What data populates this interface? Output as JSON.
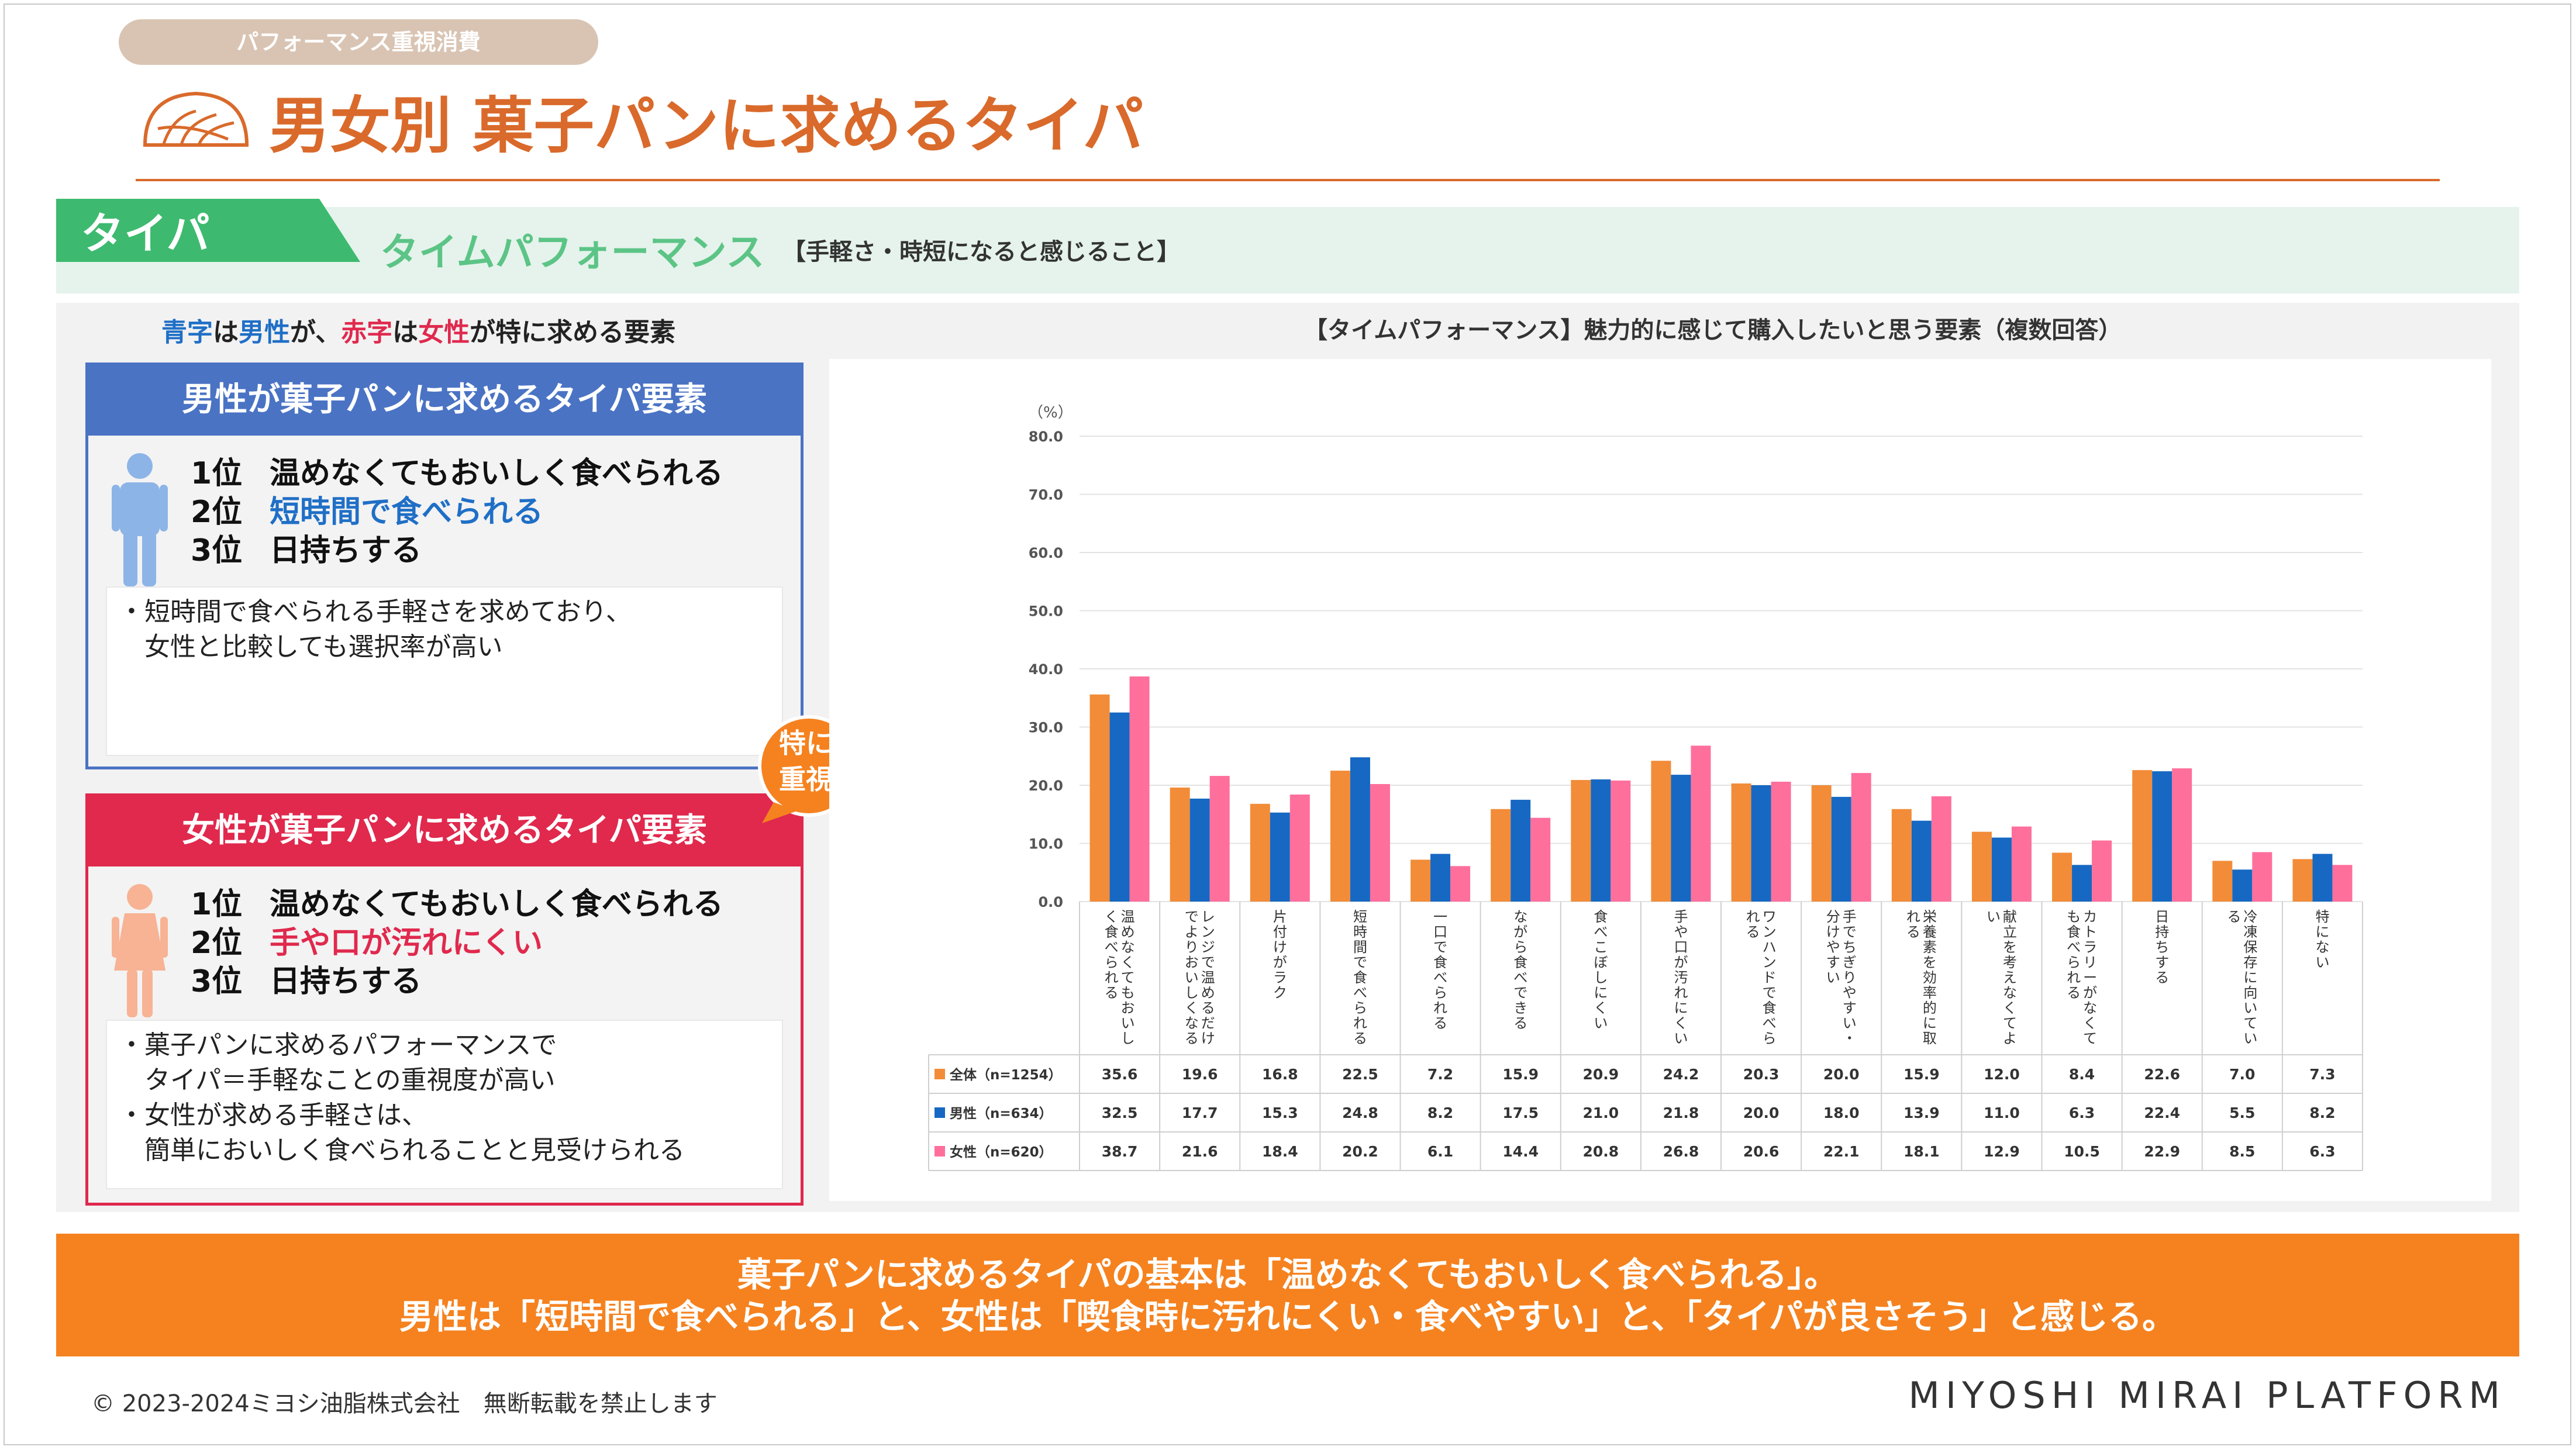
{
  "header": {
    "tag": "パフォーマンス重視消費",
    "title": "男女別 菓子パンに求めるタイパ"
  },
  "band": {
    "tag": "タイパ",
    "title": "タイムパフォーマンス",
    "subtitle": "【手軽さ・時短になると感じること】"
  },
  "legend_note": {
    "part1": "青字",
    "part2": "は",
    "part3": "男性",
    "part4": "が、",
    "part5": "赤字",
    "part6": "は",
    "part7": "女性",
    "part8": "が特に求める要素"
  },
  "male_box": {
    "title": "男性が菓子パンに求めるタイパ要素",
    "ranks": [
      {
        "pos": "1位",
        "text": "温めなくてもおいしく食べられる"
      },
      {
        "pos": "2位",
        "text": "短時間で食べられる"
      },
      {
        "pos": "3位",
        "text": "日持ちする"
      }
    ],
    "notes": [
      "・短時間で食べられる手軽さを求めており、",
      "　女性と比較しても選択率が高い"
    ]
  },
  "female_box": {
    "title": "女性が菓子パンに求めるタイパ要素",
    "ranks": [
      {
        "pos": "1位",
        "text": "温めなくてもおいしく食べられる"
      },
      {
        "pos": "2位",
        "text": "手や口が汚れにくい"
      },
      {
        "pos": "3位",
        "text": "日持ちする"
      }
    ],
    "notes": [
      "・菓子パンに求めるパフォーマンスで",
      "　タイパ＝手軽なことの重視度が高い",
      "・女性が求める手軽さは、",
      "　簡単においしく食べられることと見受けられる"
    ]
  },
  "bubble": {
    "line1": "特に",
    "line2": "重視"
  },
  "chart_title": "【タイムパフォーマンス】魅力的に感じて購入したいと思う要素（複数回答）",
  "chart_data": {
    "type": "bar",
    "ylabel": "（%）",
    "ylim": [
      0,
      80
    ],
    "yticks": [
      "0.0",
      "10.0",
      "20.0",
      "30.0",
      "40.0",
      "50.0",
      "60.0",
      "70.0",
      "80.0"
    ],
    "grid": true,
    "categories": [
      "温めなくてもおいしく食べられる",
      "レンジで温めるだけでよりおいしくなる",
      "片付けがラク",
      "短時間で食べられる",
      "一口で食べられる",
      "ながら食べできる",
      "食べこぼしにくい",
      "手や口が汚れにくい",
      "ワンハンドで食べられる",
      "手でちぎりやすい・分けやすい",
      "栄養素を効率的に取れる",
      "献立を考えなくてよい",
      "カトラリーがなくても食べられる",
      "日持ちする",
      "冷凍保存に向いている",
      "特にない"
    ],
    "series": [
      {
        "name": "全体（n=1254）",
        "color": "#f28c38",
        "values": [
          35.6,
          19.6,
          16.8,
          22.5,
          7.2,
          15.9,
          20.9,
          24.2,
          20.3,
          20.0,
          15.9,
          12.0,
          8.4,
          22.6,
          7.0,
          7.3
        ]
      },
      {
        "name": "男性（n=634）",
        "color": "#1668c2",
        "values": [
          32.5,
          17.7,
          15.3,
          24.8,
          8.2,
          17.5,
          21.0,
          21.8,
          20.0,
          18.0,
          13.9,
          11.0,
          6.3,
          22.4,
          5.5,
          8.2
        ]
      },
      {
        "name": "女性（n=620）",
        "color": "#ff6f9c",
        "values": [
          38.7,
          21.6,
          18.4,
          20.2,
          6.1,
          14.4,
          20.8,
          26.8,
          20.6,
          22.1,
          18.1,
          12.9,
          10.5,
          22.9,
          8.5,
          6.3
        ]
      }
    ]
  },
  "bottom": {
    "line1": "菓子パンに求めるタイパの基本は「温めなくてもおいしく食べられる」。",
    "line2": "男性は「短時間で食べられる」と、女性は「喫食時に汚れにくい・食べやすい」と、「タイパが良さそう」と感じる。"
  },
  "footer": {
    "copyright": "© 2023-2024ミヨシ油脂株式会社　無断転載を禁止します",
    "brand": "MIYOSHI MIRAI PLATFORM"
  },
  "colors": {
    "accent": "#d96a2b",
    "green": "#5cc486",
    "male_blue": "#4a73c4",
    "female_red": "#e0294d",
    "orange_band": "#f5821f"
  }
}
